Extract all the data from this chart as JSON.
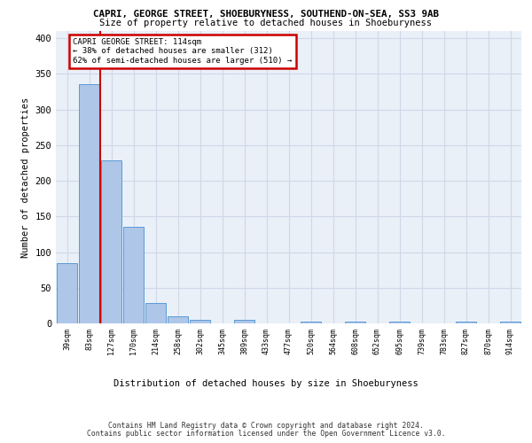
{
  "title1": "CAPRI, GEORGE STREET, SHOEBURYNESS, SOUTHEND-ON-SEA, SS3 9AB",
  "title2": "Size of property relative to detached houses in Shoeburyness",
  "xlabel": "Distribution of detached houses by size in Shoeburyness",
  "ylabel": "Number of detached properties",
  "bin_labels": [
    "39sqm",
    "83sqm",
    "127sqm",
    "170sqm",
    "214sqm",
    "258sqm",
    "302sqm",
    "345sqm",
    "389sqm",
    "433sqm",
    "477sqm",
    "520sqm",
    "564sqm",
    "608sqm",
    "652sqm",
    "695sqm",
    "739sqm",
    "783sqm",
    "827sqm",
    "870sqm",
    "914sqm"
  ],
  "bar_heights": [
    85,
    335,
    228,
    136,
    28,
    10,
    5,
    0,
    5,
    0,
    0,
    3,
    0,
    3,
    0,
    3,
    0,
    0,
    3,
    0,
    3
  ],
  "bar_color": "#aec6e8",
  "bar_edge_color": "#5b9bd5",
  "grid_color": "#d0d8e8",
  "background_color": "#eaf0f8",
  "annotation_text": "CAPRI GEORGE STREET: 114sqm\n← 38% of detached houses are smaller (312)\n62% of semi-detached houses are larger (510) →",
  "annotation_box_color": "#ffffff",
  "annotation_edge_color": "#cc0000",
  "footer1": "Contains HM Land Registry data © Crown copyright and database right 2024.",
  "footer2": "Contains public sector information licensed under the Open Government Licence v3.0.",
  "ylim": [
    0,
    410
  ],
  "yticks": [
    0,
    50,
    100,
    150,
    200,
    250,
    300,
    350,
    400
  ]
}
